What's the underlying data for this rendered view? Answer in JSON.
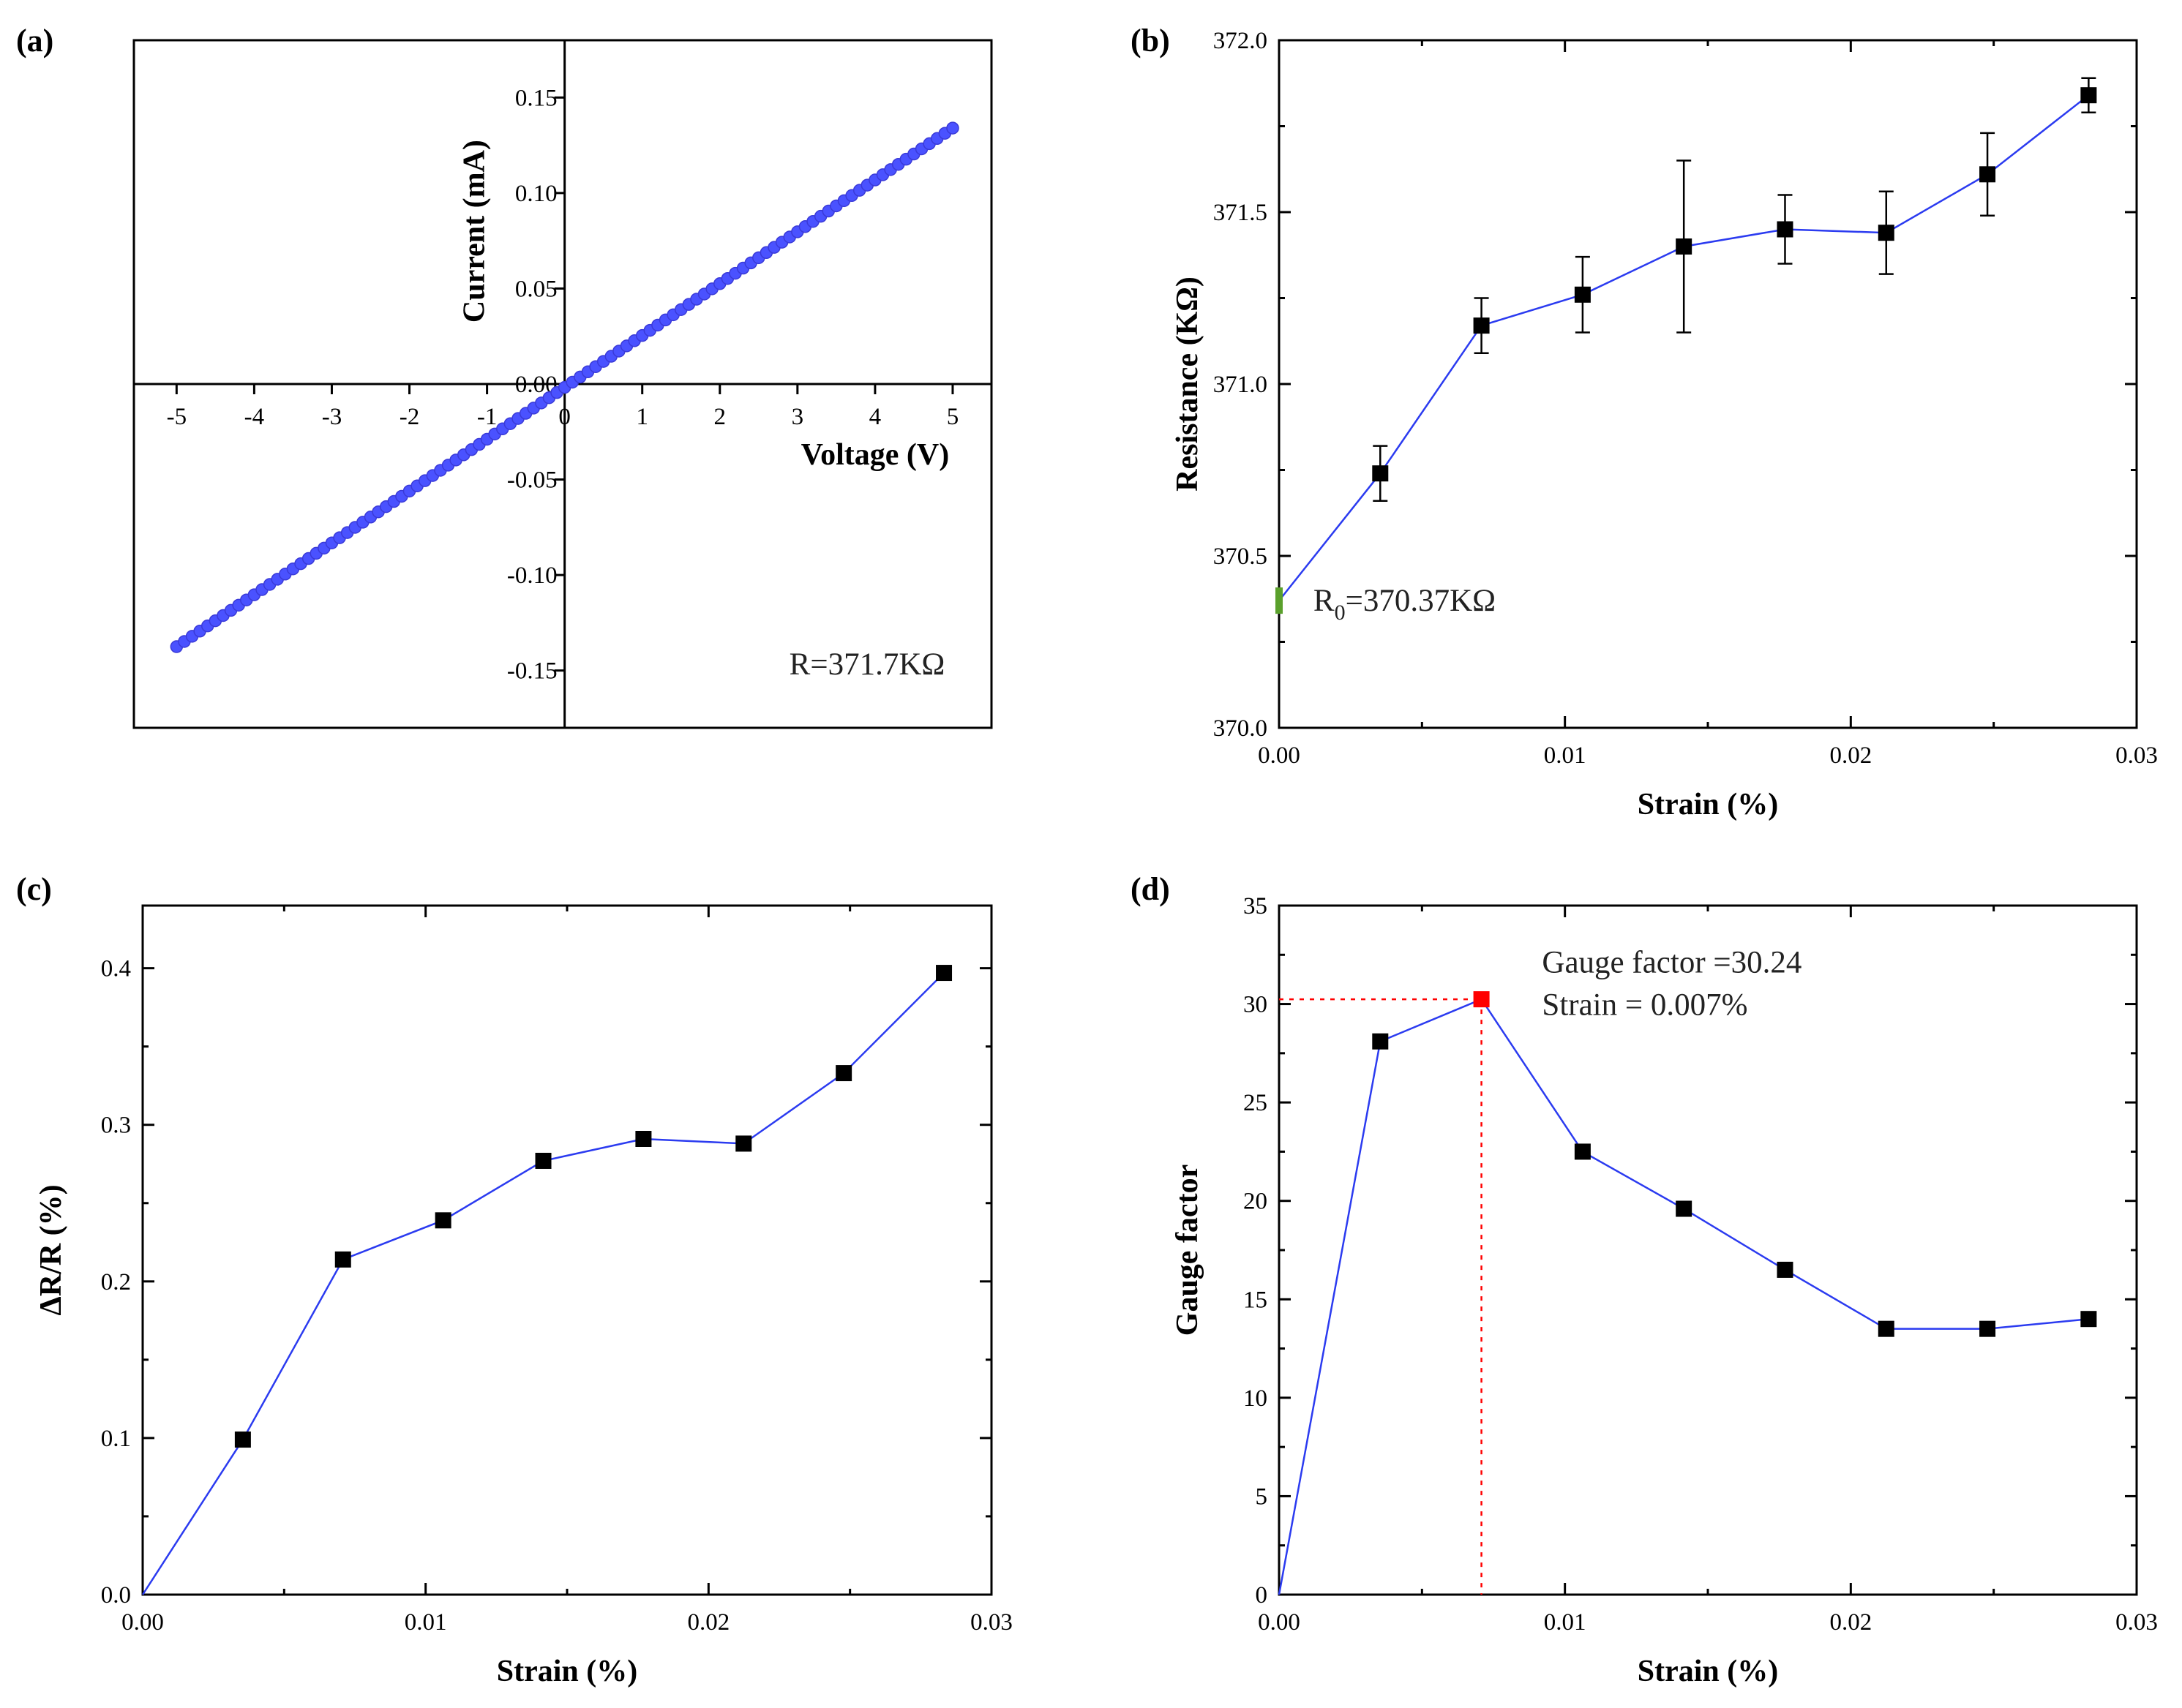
{
  "colors": {
    "series_line": "#2b3bf0",
    "marker": "#000000",
    "iv_marker": "#4a52ff",
    "r0_marker": "#5aa02c",
    "highlight_marker": "#ff0000",
    "guide_line": "#ff0000"
  },
  "chart_data": [
    {
      "id": "a",
      "panel_label": "(a)",
      "type": "scatter",
      "title": "",
      "xlabel": "Voltage (V)",
      "ylabel": "Current (mA)",
      "xlim": [
        -5.55,
        5.5
      ],
      "ylim": [
        -0.18,
        0.18
      ],
      "xticks": [
        -5,
        -4,
        -3,
        -2,
        -1,
        0,
        1,
        2,
        3,
        4,
        5
      ],
      "xtick_labels": [
        "-5",
        "-4",
        "-3",
        "-2",
        "-1",
        "0",
        "1",
        "2",
        "3",
        "4",
        "5"
      ],
      "yticks": [
        -0.15,
        -0.1,
        -0.05,
        0.0,
        0.05,
        0.1,
        0.15
      ],
      "ytick_labels": [
        "-0.15",
        "-0.10",
        "-0.05",
        "0.00",
        "0.05",
        "0.10",
        "0.15"
      ],
      "series": [
        {
          "name": "I-V",
          "x_start": -5.0,
          "x_end": 5.0,
          "y_start": -0.1375,
          "y_end": 0.134,
          "num_points": 101
        }
      ],
      "annotation": "R=371.7KΩ"
    },
    {
      "id": "b",
      "panel_label": "(b)",
      "type": "line",
      "title": "",
      "xlabel": "Strain (%)",
      "ylabel": "Resistance (KΩ)",
      "xlim": [
        0.0,
        0.03
      ],
      "ylim": [
        370.0,
        372.0
      ],
      "xticks": [
        0.0,
        0.01,
        0.02,
        0.03
      ],
      "xtick_labels": [
        "0.00",
        "0.01",
        "0.02",
        "0.03"
      ],
      "yticks": [
        370.0,
        370.5,
        371.0,
        371.5,
        372.0
      ],
      "ytick_labels": [
        "370.0",
        "370.5",
        "371.0",
        "371.5",
        "372.0"
      ],
      "series": [
        {
          "name": "Resistance",
          "x": [
            0.0,
            0.00354,
            0.00708,
            0.01062,
            0.01416,
            0.0177,
            0.02124,
            0.02478,
            0.02832
          ],
          "y": [
            370.37,
            370.74,
            371.17,
            371.26,
            371.4,
            371.45,
            371.44,
            371.61,
            371.84
          ],
          "yerr": [
            0.0,
            0.08,
            0.08,
            0.11,
            0.25,
            0.1,
            0.12,
            0.12,
            0.05
          ]
        }
      ],
      "annotation": {
        "prefix": "R",
        "sub": "0",
        "suffix": "=370.37KΩ"
      }
    },
    {
      "id": "c",
      "panel_label": "(c)",
      "type": "line",
      "title": "",
      "xlabel": "Strain (%)",
      "ylabel": "ΔR/R (%)",
      "xlim": [
        0.0,
        0.03
      ],
      "ylim": [
        0.0,
        0.44
      ],
      "xticks": [
        0.0,
        0.01,
        0.02,
        0.03
      ],
      "xtick_labels": [
        "0.00",
        "0.01",
        "0.02",
        "0.03"
      ],
      "yticks": [
        0.0,
        0.1,
        0.2,
        0.3,
        0.4
      ],
      "ytick_labels": [
        "0.0",
        "0.1",
        "0.2",
        "0.3",
        "0.4"
      ],
      "series": [
        {
          "name": "ΔR/R",
          "x": [
            0.0,
            0.00354,
            0.00708,
            0.01062,
            0.01416,
            0.0177,
            0.02124,
            0.02478,
            0.02832
          ],
          "y": [
            0.0,
            0.099,
            0.214,
            0.239,
            0.277,
            0.291,
            0.288,
            0.333,
            0.397
          ]
        }
      ]
    },
    {
      "id": "d",
      "panel_label": "(d)",
      "type": "line",
      "title": "",
      "xlabel": "Strain (%)",
      "ylabel": "Gauge factor",
      "xlim": [
        0.0,
        0.03
      ],
      "ylim": [
        0,
        35
      ],
      "xticks": [
        0.0,
        0.01,
        0.02,
        0.03
      ],
      "xtick_labels": [
        "0.00",
        "0.01",
        "0.02",
        "0.03"
      ],
      "yticks": [
        0,
        5,
        10,
        15,
        20,
        25,
        30,
        35
      ],
      "ytick_labels": [
        "0",
        "5",
        "10",
        "15",
        "20",
        "25",
        "30",
        "35"
      ],
      "series": [
        {
          "name": "Gauge factor",
          "x": [
            0.0,
            0.00354,
            0.00708,
            0.01062,
            0.01416,
            0.0177,
            0.02124,
            0.02478,
            0.02832
          ],
          "y": [
            0.0,
            28.1,
            30.24,
            22.5,
            19.6,
            16.5,
            13.5,
            13.5,
            14.0
          ]
        }
      ],
      "highlight": {
        "x": 0.00708,
        "y": 30.24
      },
      "annotation_lines": [
        "Gauge factor =30.24",
        "Strain = 0.007%"
      ]
    }
  ]
}
